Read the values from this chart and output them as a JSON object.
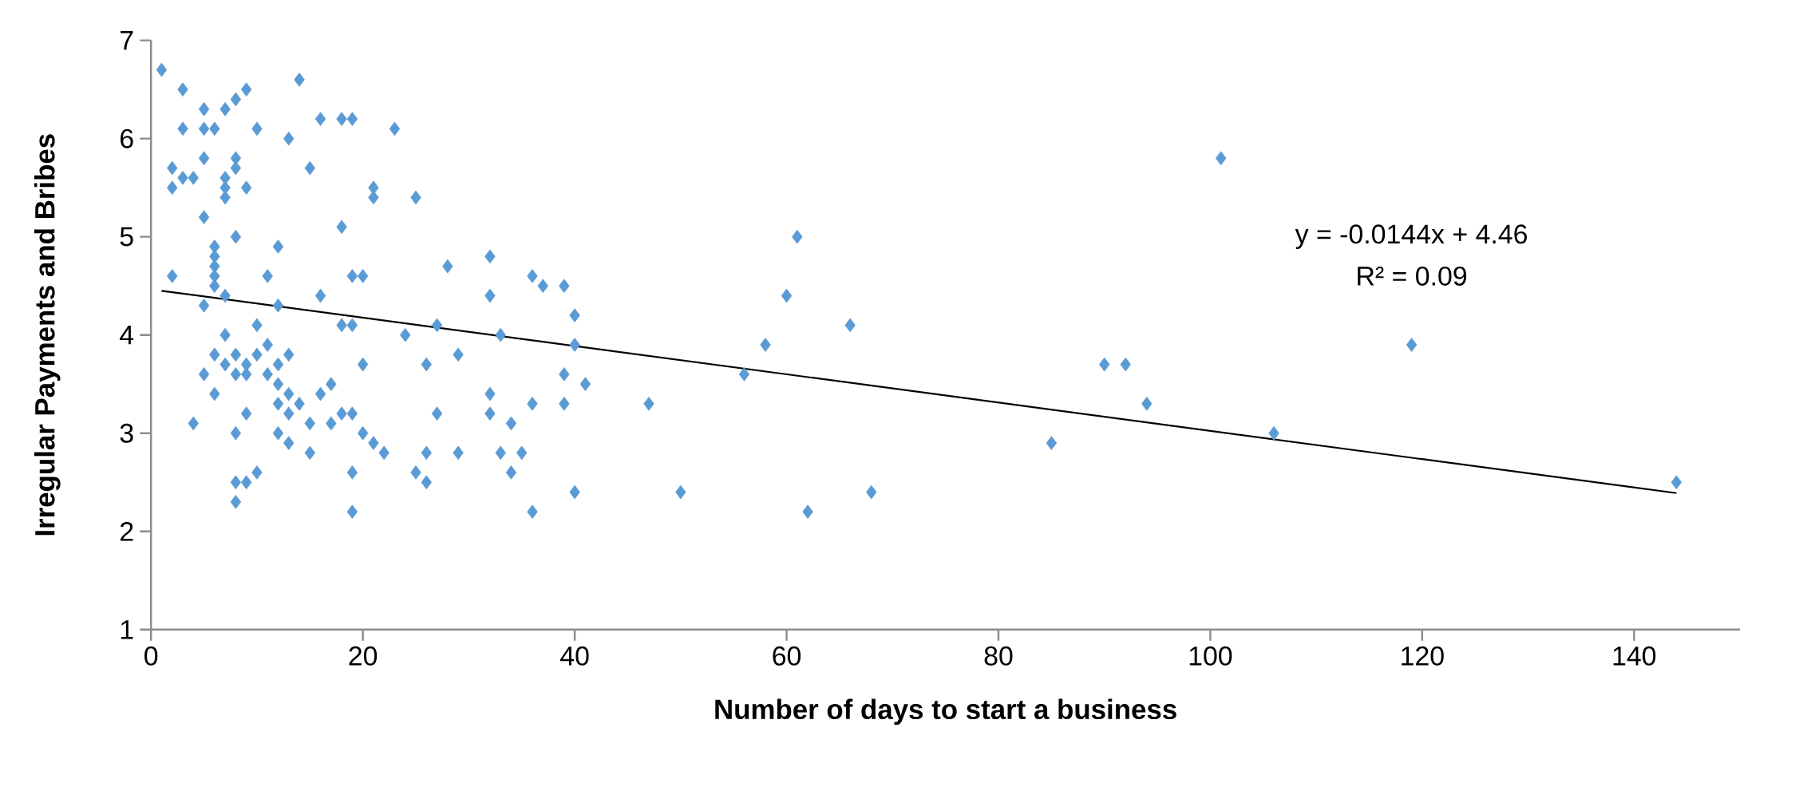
{
  "chart_data": {
    "type": "scatter",
    "xlabel": "Number of days to start a business",
    "ylabel": "Irregular Payments and Bribes",
    "xlim": [
      0,
      150
    ],
    "ylim": [
      1,
      7
    ],
    "xticks": [
      0,
      20,
      40,
      60,
      80,
      100,
      120,
      140
    ],
    "yticks": [
      1,
      2,
      3,
      4,
      5,
      6,
      7
    ],
    "annotations": [
      "y = -0.0144x + 4.46",
      "R² = 0.09"
    ],
    "series": [
      {
        "marker": "diamond",
        "color": "#5b9bd5",
        "x": [
          1,
          3,
          9,
          14,
          5,
          7,
          8,
          16,
          18,
          19,
          23,
          3,
          5,
          6,
          10,
          13,
          8,
          5,
          2,
          8,
          15,
          3,
          4,
          7,
          2,
          7,
          9,
          21,
          7,
          21,
          25,
          5,
          18,
          8,
          12,
          6,
          6,
          6,
          6,
          2,
          11,
          19,
          20,
          6,
          7,
          16,
          5,
          12,
          28,
          32,
          32,
          36,
          37,
          39,
          40,
          61,
          60,
          66,
          58,
          101,
          119,
          7,
          10,
          11,
          8,
          6,
          10,
          13,
          18,
          19,
          24,
          27,
          33,
          40,
          5,
          9,
          7,
          8,
          9,
          11,
          12,
          20,
          26,
          29,
          6,
          12,
          13,
          14,
          17,
          16,
          12,
          32,
          41,
          39,
          56,
          90,
          92,
          94,
          4,
          9,
          13,
          17,
          19,
          18,
          27,
          32,
          34,
          36,
          39,
          47,
          8,
          12,
          13,
          15,
          20,
          21,
          15,
          22,
          26,
          29,
          33,
          35,
          85,
          106,
          10,
          19,
          25,
          34,
          8,
          9,
          26,
          8,
          19,
          36,
          62,
          40,
          50,
          68,
          144
        ],
        "values": [
          6.7,
          6.5,
          6.5,
          6.6,
          6.3,
          6.3,
          6.4,
          6.2,
          6.2,
          6.2,
          6.1,
          6.1,
          6.1,
          6.1,
          6.1,
          6.0,
          5.8,
          5.8,
          5.7,
          5.7,
          5.7,
          5.6,
          5.6,
          5.6,
          5.5,
          5.5,
          5.5,
          5.5,
          5.4,
          5.4,
          5.4,
          5.2,
          5.1,
          5.0,
          4.9,
          4.9,
          4.8,
          4.7,
          4.6,
          4.6,
          4.6,
          4.6,
          4.6,
          4.5,
          4.4,
          4.4,
          4.3,
          4.3,
          4.7,
          4.8,
          4.4,
          4.6,
          4.5,
          4.5,
          4.2,
          5.0,
          4.4,
          4.1,
          3.9,
          5.8,
          3.9,
          4.0,
          4.1,
          3.9,
          3.8,
          3.8,
          3.8,
          3.8,
          4.1,
          4.1,
          4.0,
          4.1,
          4.0,
          3.9,
          3.6,
          3.7,
          3.7,
          3.6,
          3.6,
          3.6,
          3.7,
          3.7,
          3.7,
          3.8,
          3.4,
          3.5,
          3.4,
          3.3,
          3.5,
          3.4,
          3.3,
          3.4,
          3.5,
          3.6,
          3.6,
          3.7,
          3.7,
          3.3,
          3.1,
          3.2,
          3.2,
          3.1,
          3.2,
          3.2,
          3.2,
          3.2,
          3.1,
          3.3,
          3.3,
          3.3,
          3.0,
          3.0,
          2.9,
          3.1,
          3.0,
          2.9,
          2.8,
          2.8,
          2.8,
          2.8,
          2.8,
          2.8,
          2.9,
          3.0,
          2.6,
          2.6,
          2.6,
          2.6,
          2.5,
          2.5,
          2.5,
          2.3,
          2.2,
          2.2,
          2.2,
          2.4,
          2.4,
          2.4,
          2.5
        ]
      },
      {
        "type": "line",
        "marker": "none",
        "line_style": "solid",
        "color": "#000000",
        "x": [
          1,
          144
        ],
        "values": [
          4.45,
          2.39
        ]
      }
    ]
  }
}
